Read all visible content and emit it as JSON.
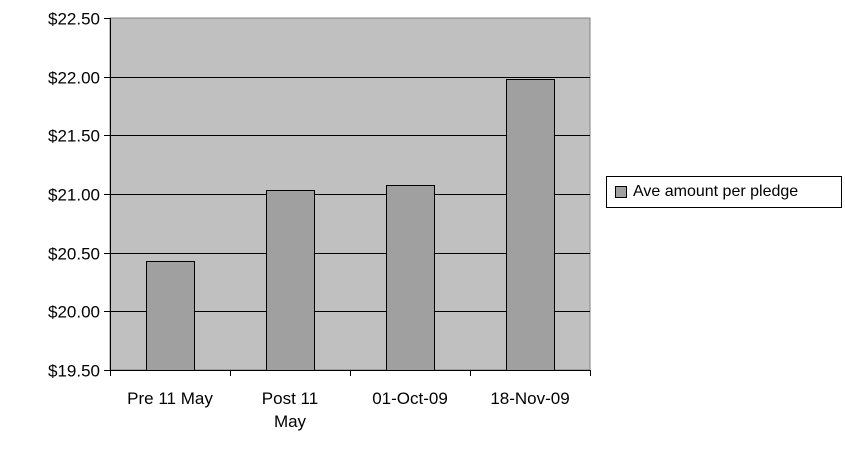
{
  "chart_data": {
    "type": "bar",
    "categories": [
      "Pre 11 May",
      "Post 11\nMay",
      "01-Oct-09",
      "18-Nov-09"
    ],
    "series": [
      {
        "name": "Ave amount per pledge",
        "values": [
          20.43,
          21.03,
          21.08,
          21.98
        ],
        "color": "#a0a0a0"
      }
    ],
    "title": "",
    "xlabel": "",
    "ylabel": "",
    "ylim": [
      19.5,
      22.5
    ],
    "yticks": [
      "$19.50",
      "$20.00",
      "$20.50",
      "$21.00",
      "$21.50",
      "$22.00",
      "$22.50"
    ],
    "grid": true,
    "plot_background": "#c0c0c0",
    "legend_position": "right"
  }
}
